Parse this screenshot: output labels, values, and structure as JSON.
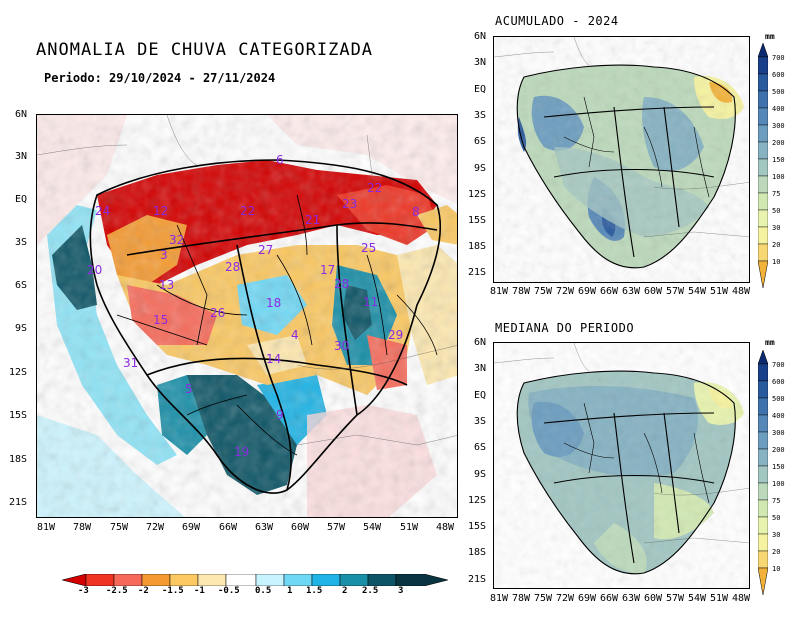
{
  "main": {
    "title": "ANOMALIA DE CHUVA CATEGORIZADA",
    "period": "Periodo: 29/10/2024 - 27/11/2024",
    "lat_ticks": [
      "6N",
      "3N",
      "EQ",
      "3S",
      "6S",
      "9S",
      "12S",
      "15S",
      "18S",
      "21S"
    ],
    "lon_ticks": [
      "81W",
      "78W",
      "75W",
      "72W",
      "69W",
      "66W",
      "63W",
      "60W",
      "57W",
      "54W",
      "51W",
      "48W"
    ],
    "basin_labels": [
      "6",
      "22",
      "24",
      "12",
      "22",
      "21",
      "23",
      "8",
      "32",
      "3",
      "20",
      "13",
      "27",
      "28",
      "17",
      "28",
      "11",
      "18",
      "25",
      "26",
      "4",
      "29",
      "30",
      "31",
      "14",
      "15",
      "5",
      "9",
      "19"
    ],
    "colorbar": {
      "labels": [
        "-3",
        "-2.5",
        "-2",
        "-1.5",
        "-1",
        "-0.5",
        "0.5",
        "1",
        "1.5",
        "2",
        "2.5",
        "3"
      ],
      "colors": [
        "#d40000",
        "#ee3322",
        "#f76a5a",
        "#f59a30",
        "#fbc862",
        "#fde8b0",
        "#ffffff",
        "#c8f4ff",
        "#6fd8f5",
        "#20b4e6",
        "#1a8fa8",
        "#0d5566",
        "#083540"
      ]
    }
  },
  "top_panel": {
    "title": "ACUMULADO - 2024",
    "lat_ticks": [
      "6N",
      "3N",
      "EQ",
      "3S",
      "6S",
      "9S",
      "12S",
      "15S",
      "18S",
      "21S"
    ],
    "lon_ticks": [
      "81W",
      "78W",
      "75W",
      "72W",
      "69W",
      "66W",
      "63W",
      "60W",
      "57W",
      "54W",
      "51W",
      "48W"
    ]
  },
  "bottom_panel": {
    "title": "MEDIANA DO PERIODO",
    "lat_ticks": [
      "6N",
      "3N",
      "EQ",
      "3S",
      "6S",
      "9S",
      "12S",
      "15S",
      "18S",
      "21S"
    ],
    "lon_ticks": [
      "81W",
      "78W",
      "75W",
      "72W",
      "69W",
      "66W",
      "63W",
      "60W",
      "57W",
      "54W",
      "51W",
      "48W"
    ]
  },
  "precip_colorbar": {
    "unit": "mm",
    "labels": [
      "700",
      "600",
      "500",
      "400",
      "300",
      "200",
      "150",
      "100",
      "75",
      "50",
      "30",
      "20",
      "10"
    ],
    "colors": [
      "#0b2a70",
      "#183f8a",
      "#2a5a9e",
      "#3f72ad",
      "#5588b8",
      "#6c9dbf",
      "#86b2c2",
      "#a2c6c2",
      "#bcd9bb",
      "#d2e8b3",
      "#e7f3ae",
      "#f6f3a0",
      "#f7d774",
      "#f2b23a"
    ]
  }
}
